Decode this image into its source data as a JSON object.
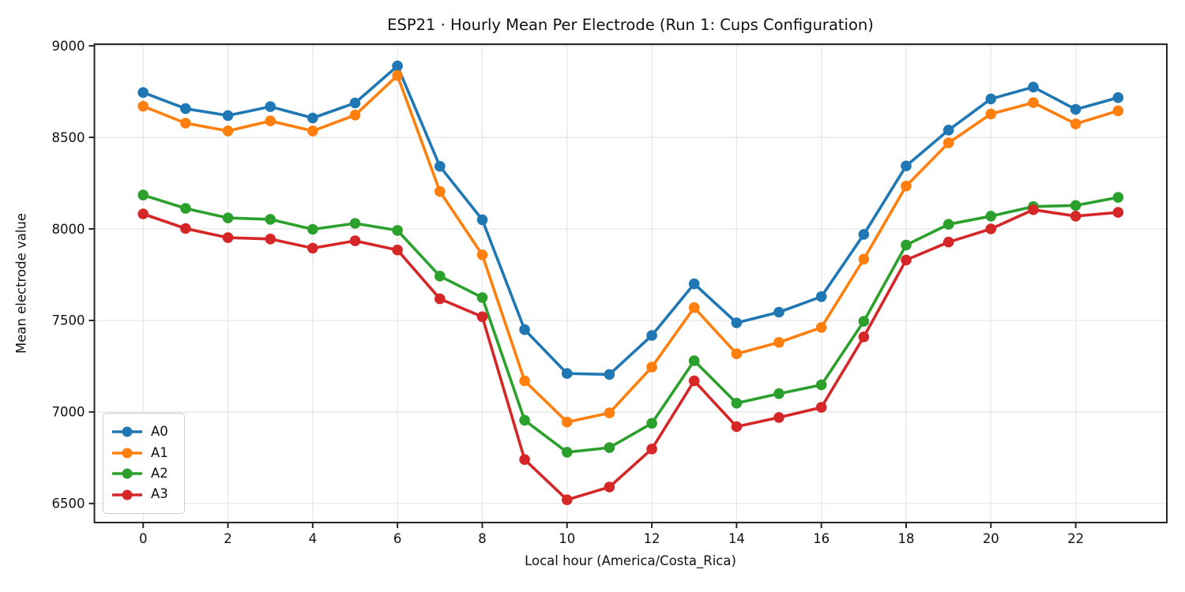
{
  "figure": {
    "title": "ESP21 · Hourly Mean Per Electrode (Run 1: Cups Configuration)",
    "xlabel": "Local hour (America/Costa_Rica)",
    "ylabel": "Mean electrode value"
  },
  "chart_data": {
    "type": "line",
    "title": "ESP21 · Hourly Mean Per Electrode (Run 1: Cups Configuration)",
    "xlabel": "Local hour (America/Costa_Rica)",
    "ylabel": "Mean electrode value",
    "x": [
      0,
      1,
      2,
      3,
      4,
      5,
      6,
      7,
      8,
      9,
      10,
      11,
      12,
      13,
      14,
      15,
      16,
      17,
      18,
      19,
      20,
      21,
      22,
      23
    ],
    "series": [
      {
        "name": "A0",
        "color": "#1f77b4",
        "values": [
          8745,
          8657,
          8619,
          8668,
          8606,
          8688,
          8890,
          8342,
          8050,
          7450,
          7210,
          7205,
          7418,
          7700,
          7487,
          7545,
          7630,
          7970,
          8344,
          8540,
          8710,
          8775,
          8653,
          8717
        ]
      },
      {
        "name": "A1",
        "color": "#ff7f0e",
        "values": [
          8670,
          8578,
          8535,
          8590,
          8535,
          8622,
          8838,
          8205,
          7858,
          7170,
          6945,
          6995,
          7245,
          7570,
          7318,
          7380,
          7462,
          7835,
          8234,
          8470,
          8628,
          8690,
          8574,
          8645
        ]
      },
      {
        "name": "A2",
        "color": "#2ca02c",
        "values": [
          8185,
          8112,
          8060,
          8052,
          7998,
          8030,
          7992,
          7742,
          7625,
          6955,
          6780,
          6805,
          6938,
          7280,
          7048,
          7100,
          7148,
          7495,
          7912,
          8025,
          8070,
          8122,
          8128,
          8172
        ]
      },
      {
        "name": "A3",
        "color": "#d62728",
        "values": [
          8082,
          8002,
          7952,
          7945,
          7895,
          7935,
          7885,
          7618,
          7520,
          6740,
          6520,
          6590,
          6798,
          7170,
          6920,
          6970,
          7025,
          7410,
          7830,
          7928,
          8000,
          8105,
          8070,
          8090
        ]
      }
    ],
    "xticks": [
      0,
      2,
      4,
      6,
      8,
      10,
      12,
      14,
      16,
      18,
      20,
      22
    ],
    "yticks": [
      6500,
      7000,
      7500,
      8000,
      8500,
      9000
    ],
    "xlim": [
      -1.15,
      24.15
    ],
    "ylim": [
      6396,
      9009
    ],
    "grid": true,
    "legend_position": "lower left",
    "legend_entries": [
      "A0",
      "A1",
      "A2",
      "A3"
    ],
    "colors": {
      "grid": "#e7e7e7",
      "spine": "#262626",
      "text": "#111111"
    }
  }
}
